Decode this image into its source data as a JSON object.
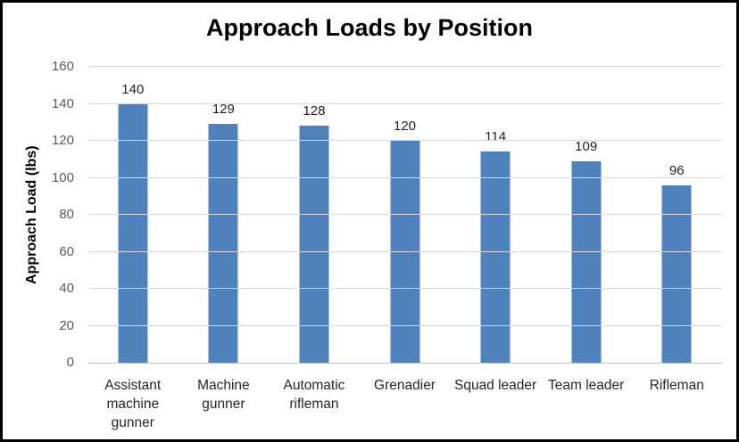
{
  "chart_title": "Approach Loads by Position",
  "chart_data": {
    "type": "bar",
    "title": "Approach Loads by Position",
    "xlabel": "",
    "ylabel": "Approach Load (lbs)",
    "categories": [
      "Assistant machine gunner",
      "Machine gunner",
      "Automatic rifleman",
      "Grenadier",
      "Squad leader",
      "Team leader",
      "Rifleman"
    ],
    "values": [
      140,
      129,
      128,
      120,
      114,
      109,
      96
    ],
    "data_labels": [
      "140",
      "129",
      "128",
      "120",
      "114",
      "109",
      "96"
    ],
    "ylim": [
      0,
      160
    ],
    "ytick_step": 20,
    "yticks": [
      0,
      20,
      40,
      60,
      80,
      100,
      120,
      140,
      160
    ],
    "grid": true,
    "legend": false,
    "colors": {
      "bar_fill": "#4F81BD",
      "gridline": "#D9D9D9",
      "axis_line": "#BFBFBF",
      "tick_label": "#595959",
      "data_label": "#1f1f1f",
      "category_label": "#262626",
      "title": "#000000",
      "frame_border": "#000000",
      "background": "#FFFFFF"
    }
  }
}
